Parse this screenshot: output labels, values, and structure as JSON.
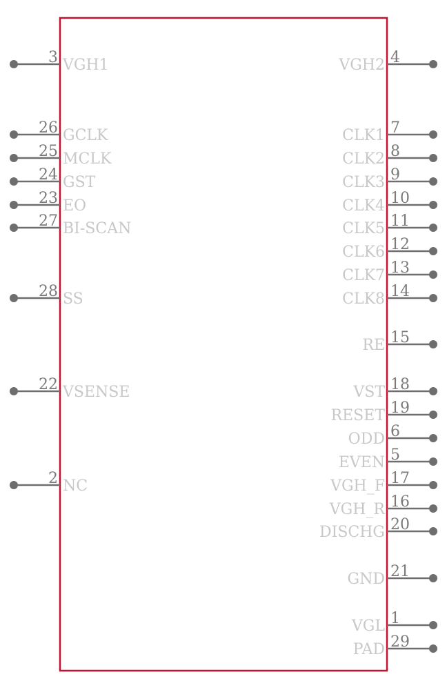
{
  "component": {
    "outline_color": "#c8102e",
    "pin_color": "#6e6e6e",
    "label_color": "#c8c8c8",
    "number_color": "#7a7a7a"
  },
  "left_pins": [
    {
      "number": "3",
      "name": "VGH1"
    },
    {
      "number": "26",
      "name": "GCLK"
    },
    {
      "number": "25",
      "name": "MCLK"
    },
    {
      "number": "24",
      "name": "GST"
    },
    {
      "number": "23",
      "name": "EO"
    },
    {
      "number": "27",
      "name": "BI-SCAN"
    },
    {
      "number": "28",
      "name": "SS"
    },
    {
      "number": "22",
      "name": "VSENSE"
    },
    {
      "number": "2",
      "name": "NC"
    }
  ],
  "right_pins": [
    {
      "number": "4",
      "name": "VGH2"
    },
    {
      "number": "7",
      "name": "CLK1"
    },
    {
      "number": "8",
      "name": "CLK2"
    },
    {
      "number": "9",
      "name": "CLK3"
    },
    {
      "number": "10",
      "name": "CLK4"
    },
    {
      "number": "11",
      "name": "CLK5"
    },
    {
      "number": "12",
      "name": "CLK6"
    },
    {
      "number": "13",
      "name": "CLK7"
    },
    {
      "number": "14",
      "name": "CLK8"
    },
    {
      "number": "15",
      "name": "RE"
    },
    {
      "number": "18",
      "name": "VST"
    },
    {
      "number": "19",
      "name": "RESET"
    },
    {
      "number": "6",
      "name": "ODD"
    },
    {
      "number": "5",
      "name": "EVEN"
    },
    {
      "number": "17",
      "name": "VGH_F"
    },
    {
      "number": "16",
      "name": "VGH_R"
    },
    {
      "number": "20",
      "name": "DISCHG"
    },
    {
      "number": "21",
      "name": "GND"
    },
    {
      "number": "1",
      "name": "VGL"
    },
    {
      "number": "29",
      "name": "PAD"
    }
  ]
}
